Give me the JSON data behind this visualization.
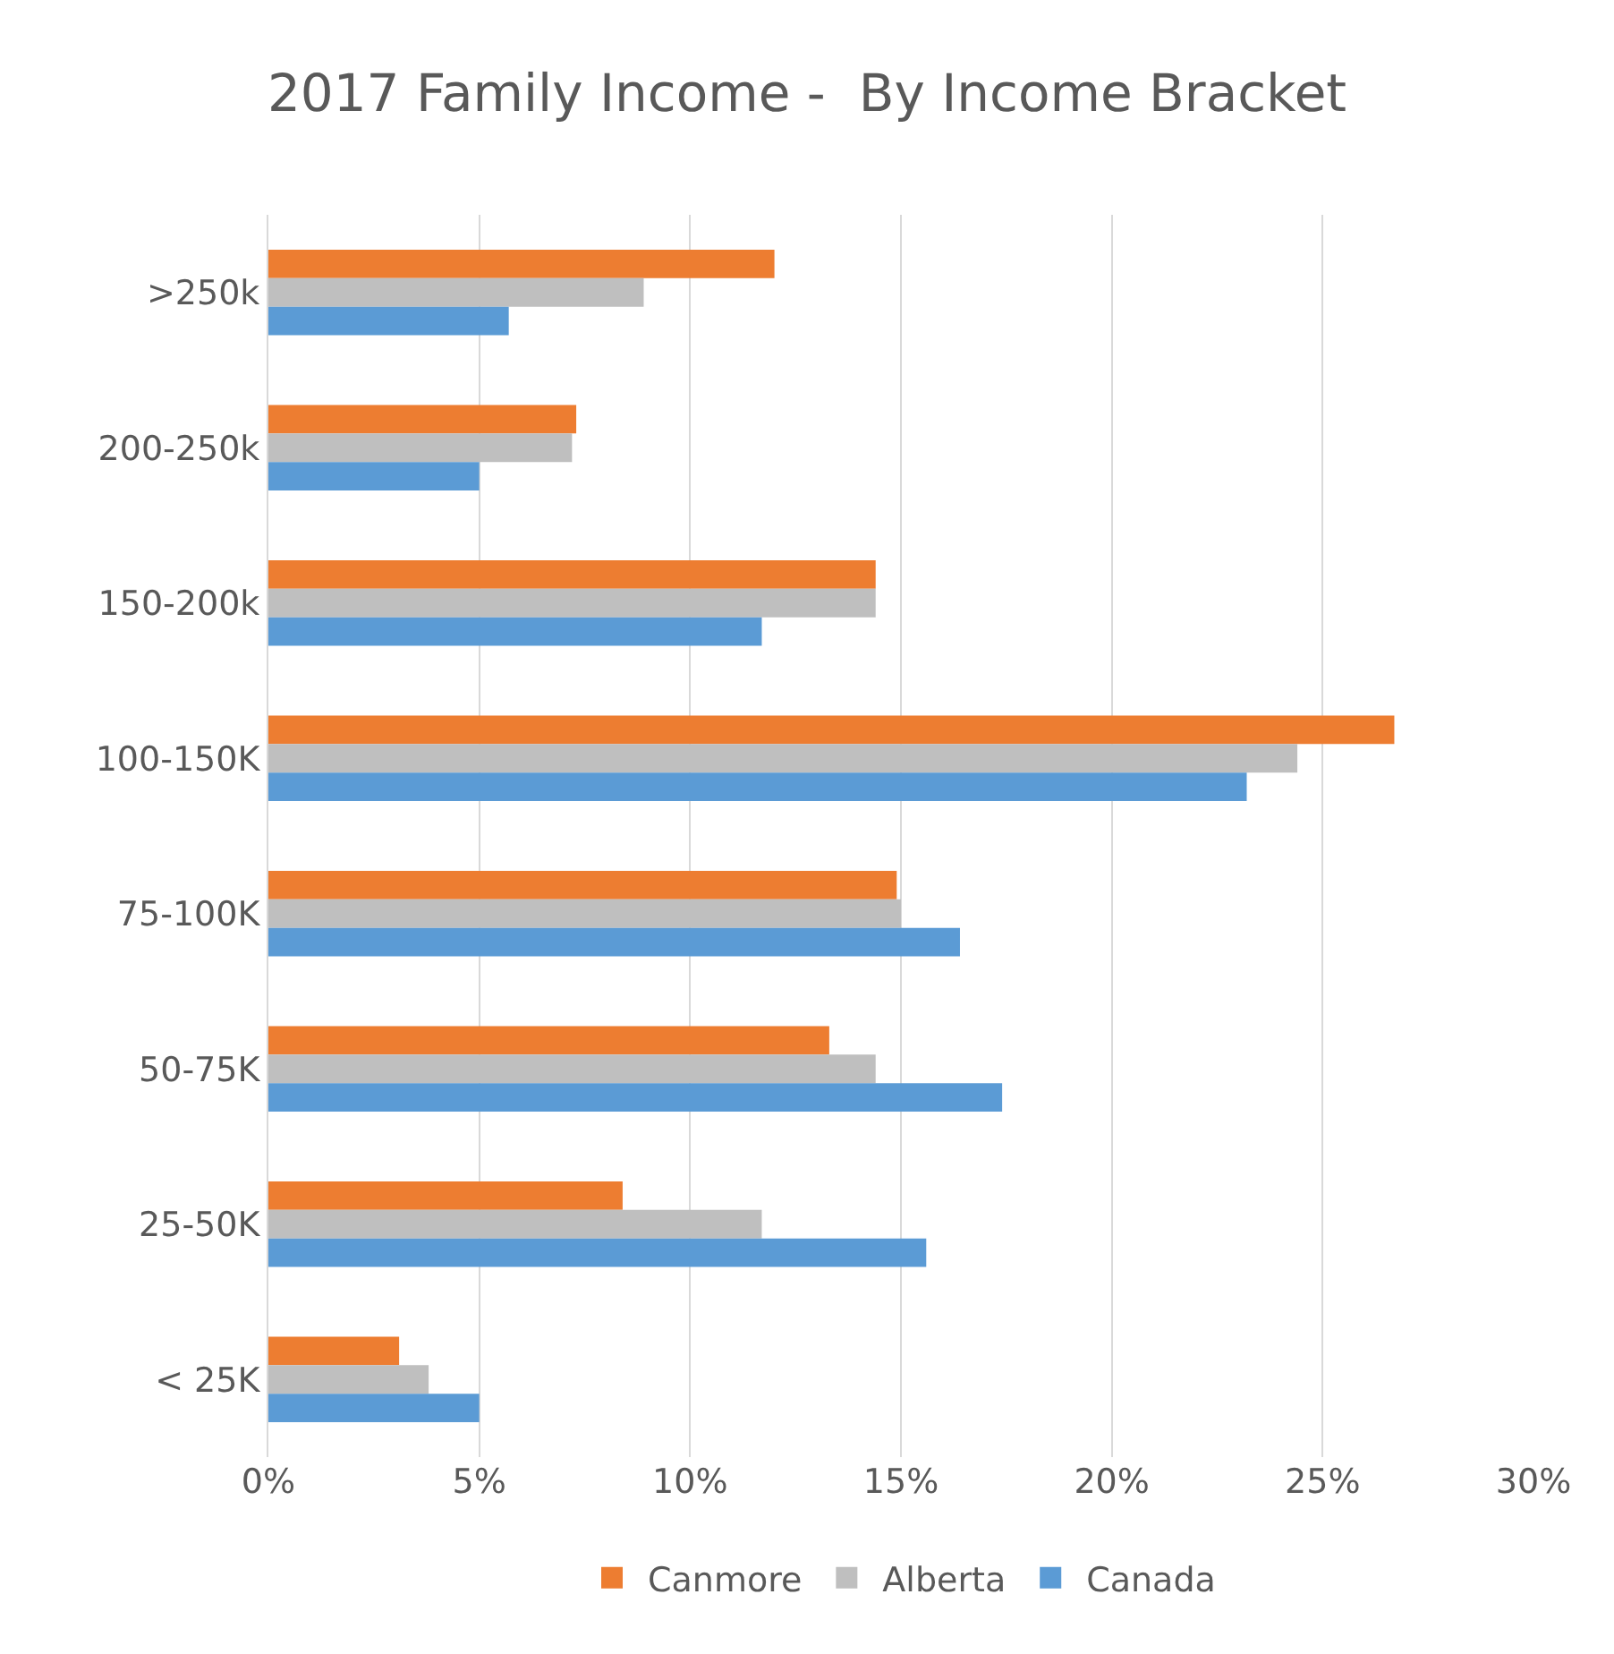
{
  "chart_data": {
    "type": "bar",
    "orientation": "horizontal",
    "title": "2017 Family Income -  By Income Bracket",
    "categories": [
      ">250k",
      "200-250k",
      "150-200k",
      "100-150K",
      "75-100K",
      "50-75K",
      "25-50K",
      "< 25K"
    ],
    "series": [
      {
        "name": "Canmore",
        "color": "#ed7d31",
        "values": [
          12.0,
          7.3,
          14.4,
          26.7,
          14.9,
          13.3,
          8.4,
          3.1
        ]
      },
      {
        "name": "Alberta",
        "color": "#bfbfbf",
        "values": [
          8.9,
          7.2,
          14.4,
          24.4,
          15.0,
          14.4,
          11.7,
          3.8
        ]
      },
      {
        "name": "Canada",
        "color": "#5b9bd5",
        "values": [
          5.7,
          5.0,
          11.7,
          23.2,
          16.4,
          17.4,
          15.6,
          5.0
        ]
      }
    ],
    "xlim": [
      0,
      30
    ],
    "xticks": [
      {
        "value": 0,
        "label": "0%"
      },
      {
        "value": 5,
        "label": "5%"
      },
      {
        "value": 10,
        "label": "10%"
      },
      {
        "value": 15,
        "label": "15%"
      },
      {
        "value": 20,
        "label": "20%"
      },
      {
        "value": 25,
        "label": "25%"
      },
      {
        "value": 30,
        "label": "30%"
      }
    ],
    "grid": "x",
    "legend": "bottom"
  }
}
